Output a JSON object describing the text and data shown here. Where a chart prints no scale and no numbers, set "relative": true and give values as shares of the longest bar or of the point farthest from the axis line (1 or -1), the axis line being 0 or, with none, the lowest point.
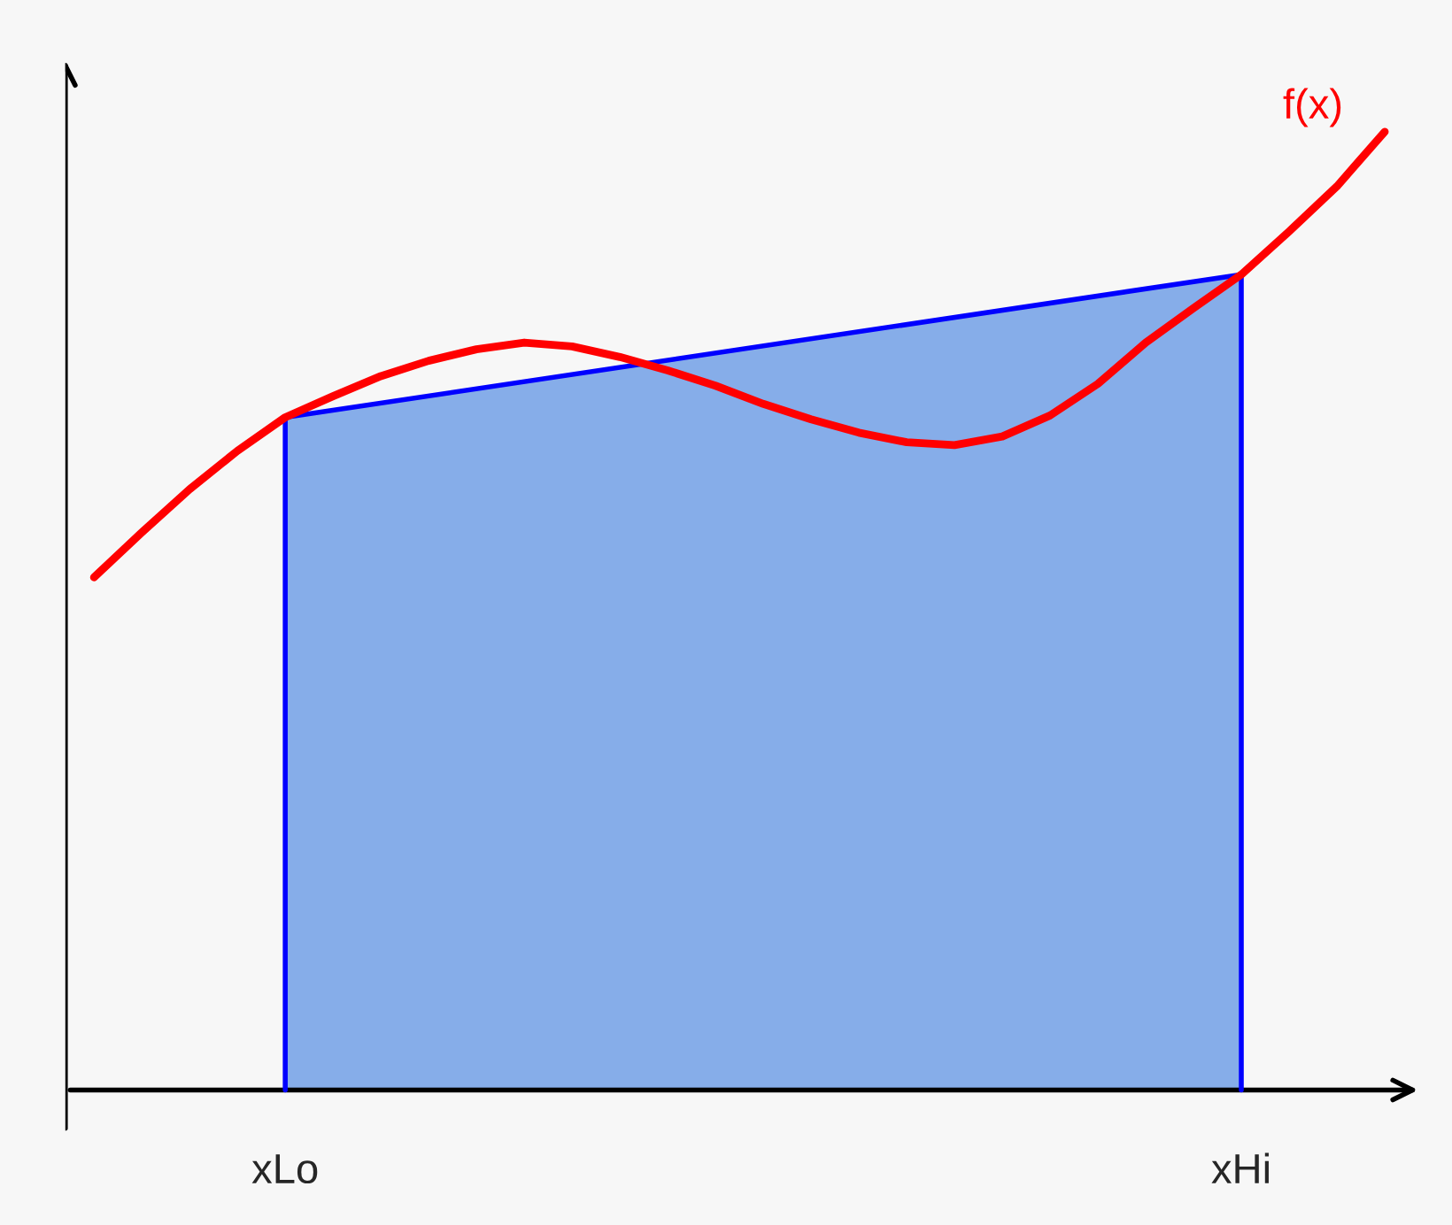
{
  "chart_data": {
    "type": "line",
    "relative": true,
    "categories": [
      null,
      null,
      null,
      null,
      "xLo",
      null,
      null,
      null,
      null,
      null,
      null,
      null,
      null,
      null,
      null,
      null,
      null,
      null,
      null,
      null,
      null,
      null,
      null,
      null,
      "xHi",
      null,
      null,
      null
    ],
    "series": [
      {
        "type": "area",
        "color": "#3b7be0",
        "values": [
          null,
          null,
          null,
          null,
          0.702,
          null,
          null,
          null,
          null,
          null,
          null,
          null,
          null,
          null,
          null,
          null,
          null,
          null,
          null,
          null,
          null,
          null,
          null,
          null,
          0.851,
          null,
          null,
          null
        ]
      },
      {
        "name": "f(x)",
        "color": "#ff0000",
        "values": [
          0.535,
          0.582,
          0.627,
          0.667,
          0.702,
          0.724,
          0.745,
          0.761,
          0.773,
          0.78,
          0.776,
          0.765,
          0.751,
          0.735,
          0.716,
          0.7,
          0.686,
          0.676,
          0.673,
          0.682,
          0.704,
          0.737,
          0.78,
          0.816,
          0.851,
          0.896,
          0.943,
          1
        ]
      }
    ],
    "grid": false,
    "legend": false,
    "marker": "none",
    "line_style": "solid"
  }
}
